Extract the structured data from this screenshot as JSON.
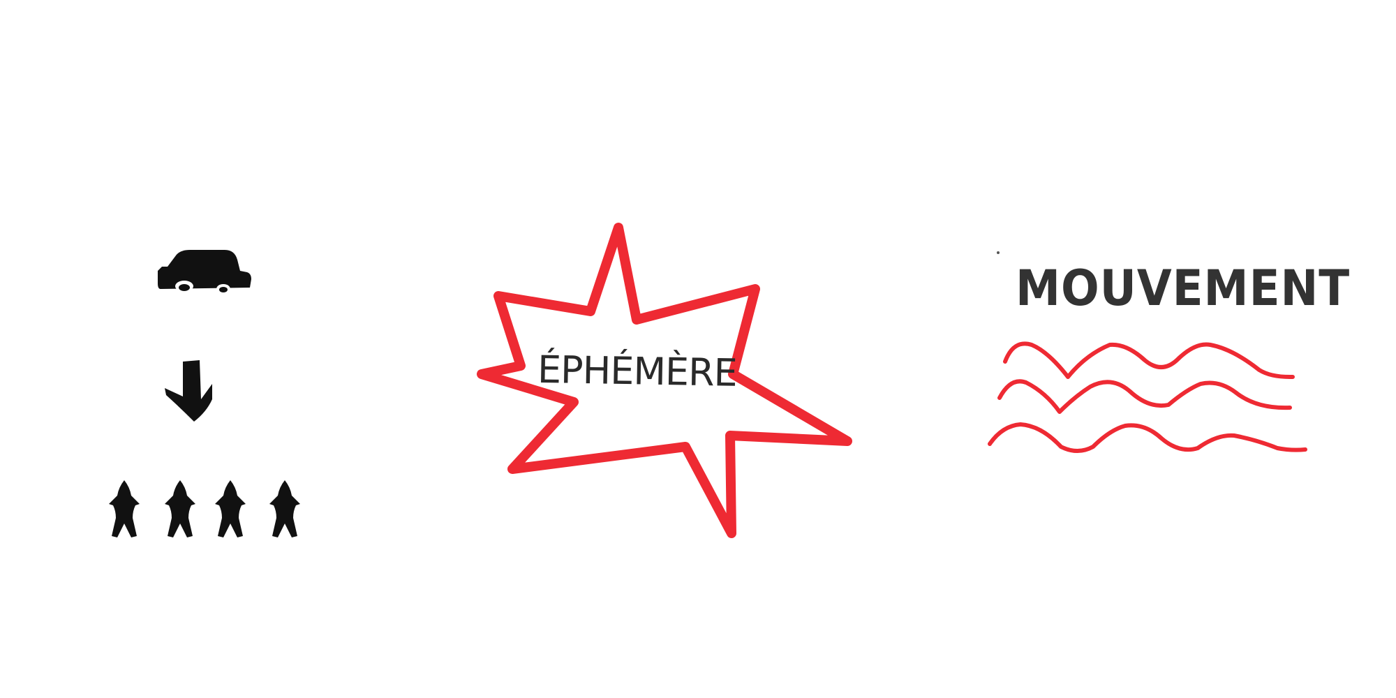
{
  "labels": {
    "burst": "ÉPHÉMÈRE",
    "movement": "MOUVEMENT"
  },
  "colors": {
    "ink": "#111111",
    "text": "#2f2f2f",
    "accent": "#ee2a33",
    "background": "#ffffff"
  },
  "icons": {
    "vehicle": "car-icon",
    "arrow": "arrow-down-icon",
    "people": "person-icon"
  }
}
